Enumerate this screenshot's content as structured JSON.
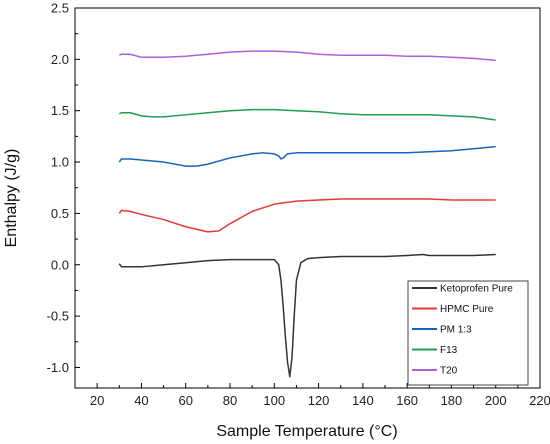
{
  "chart_data": {
    "type": "line",
    "xlabel": "Sample Temperature (°C)",
    "ylabel": "Enthalpy (J/g)",
    "xlim": [
      10,
      220
    ],
    "ylim": [
      -1.2,
      2.5
    ],
    "x_ticks": [
      20,
      40,
      60,
      80,
      100,
      120,
      140,
      160,
      180,
      200,
      220
    ],
    "y_ticks": [
      -1.0,
      -0.5,
      0.0,
      0.5,
      1.0,
      1.5,
      2.0,
      2.5
    ],
    "grid": false,
    "legend_position": "bottom-right",
    "series": [
      {
        "name": "Ketoprofen Pure",
        "color": "#333333",
        "x": [
          30,
          31,
          35,
          40,
          50,
          60,
          70,
          80,
          90,
          95,
          100,
          102,
          103,
          104,
          105,
          106,
          107,
          108,
          109,
          110,
          112,
          115,
          120,
          130,
          140,
          150,
          160,
          167,
          170,
          180,
          190,
          200
        ],
        "y": [
          0.01,
          -0.02,
          -0.02,
          -0.02,
          0.0,
          0.02,
          0.04,
          0.05,
          0.05,
          0.05,
          0.05,
          0.0,
          -0.15,
          -0.4,
          -0.7,
          -0.95,
          -1.09,
          -0.9,
          -0.5,
          -0.15,
          0.02,
          0.06,
          0.07,
          0.08,
          0.08,
          0.08,
          0.09,
          0.1,
          0.09,
          0.09,
          0.09,
          0.1
        ]
      },
      {
        "name": "HPMC Pure",
        "color": "#e53935",
        "x": [
          30,
          31,
          35,
          40,
          50,
          60,
          70,
          75,
          80,
          90,
          100,
          110,
          120,
          130,
          140,
          150,
          160,
          170,
          180,
          190,
          200
        ],
        "y": [
          0.5,
          0.53,
          0.52,
          0.49,
          0.44,
          0.37,
          0.32,
          0.33,
          0.4,
          0.52,
          0.59,
          0.62,
          0.63,
          0.64,
          0.64,
          0.64,
          0.64,
          0.64,
          0.63,
          0.63,
          0.63
        ]
      },
      {
        "name": "PM 1:3",
        "color": "#1565c0",
        "x": [
          30,
          31,
          35,
          40,
          50,
          60,
          65,
          70,
          80,
          90,
          95,
          100,
          102,
          103,
          104,
          106,
          110,
          120,
          130,
          140,
          150,
          160,
          170,
          180,
          190,
          200
        ],
        "y": [
          1.0,
          1.03,
          1.03,
          1.02,
          1.0,
          0.96,
          0.96,
          0.98,
          1.04,
          1.08,
          1.09,
          1.08,
          1.06,
          1.03,
          1.04,
          1.08,
          1.09,
          1.09,
          1.09,
          1.09,
          1.09,
          1.09,
          1.1,
          1.11,
          1.13,
          1.15
        ]
      },
      {
        "name": "F13",
        "color": "#1e9e50",
        "x": [
          30,
          31,
          35,
          40,
          45,
          50,
          60,
          70,
          80,
          90,
          100,
          110,
          120,
          130,
          140,
          150,
          160,
          170,
          180,
          190,
          200
        ],
        "y": [
          1.47,
          1.48,
          1.48,
          1.45,
          1.44,
          1.44,
          1.46,
          1.48,
          1.5,
          1.51,
          1.51,
          1.5,
          1.49,
          1.47,
          1.46,
          1.46,
          1.46,
          1.46,
          1.45,
          1.44,
          1.41
        ]
      },
      {
        "name": "T20",
        "color": "#b15fd8",
        "x": [
          30,
          31,
          35,
          40,
          45,
          50,
          60,
          70,
          80,
          90,
          100,
          110,
          120,
          130,
          140,
          150,
          160,
          170,
          180,
          190,
          200
        ],
        "y": [
          2.04,
          2.05,
          2.05,
          2.02,
          2.02,
          2.02,
          2.03,
          2.05,
          2.07,
          2.08,
          2.08,
          2.07,
          2.05,
          2.04,
          2.04,
          2.04,
          2.03,
          2.03,
          2.02,
          2.01,
          1.99
        ]
      }
    ]
  }
}
